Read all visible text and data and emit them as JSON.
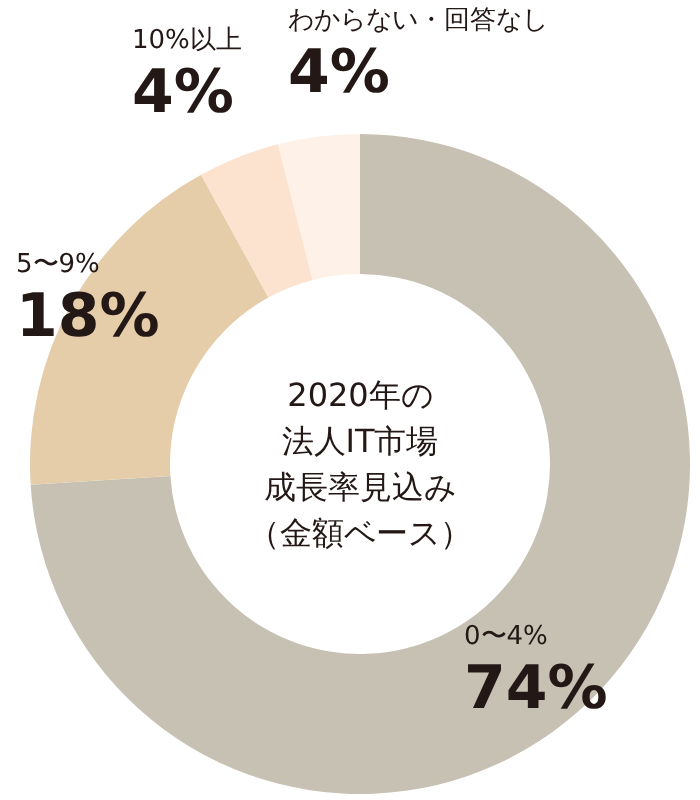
{
  "chart_data": {
    "type": "donut",
    "annotations": [
      "2020年の",
      "法人IT市場",
      "成長率見込み",
      "（金額ベース）"
    ],
    "categories": [
      "0〜4%",
      "5〜9%",
      "10%以上",
      "わからない・回答なし"
    ],
    "values": [
      74,
      18,
      4,
      4
    ],
    "value_labels": [
      "74%",
      "18%",
      "4%",
      "4%"
    ],
    "colors": [
      "#c6c1b2",
      "#e6cdaa",
      "#fbe3cf",
      "#fdf1e8"
    ],
    "legend": false
  }
}
